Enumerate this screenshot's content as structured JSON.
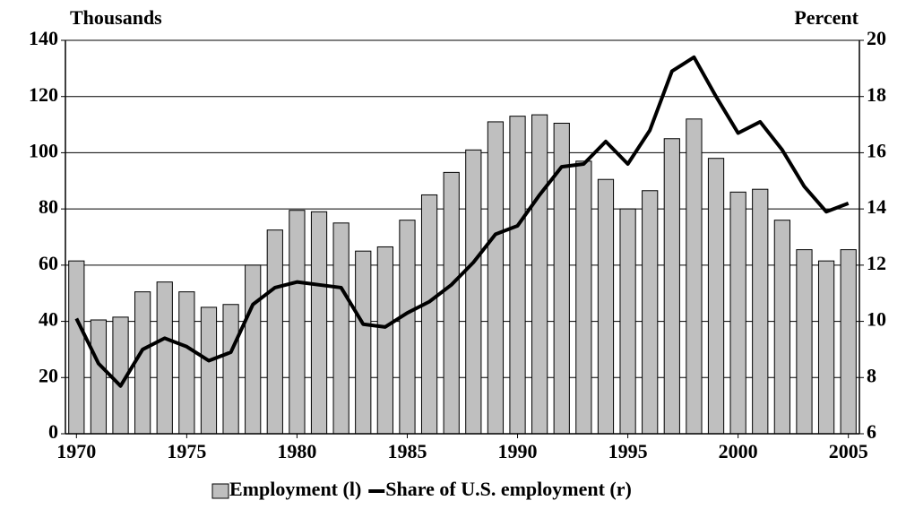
{
  "chart_data": {
    "type": "bar",
    "ylabel": "Thousands",
    "y2label": "Percent",
    "x": [
      1970,
      1971,
      1972,
      1973,
      1974,
      1975,
      1976,
      1977,
      1978,
      1979,
      1980,
      1981,
      1982,
      1983,
      1984,
      1985,
      1986,
      1987,
      1988,
      1989,
      1990,
      1991,
      1992,
      1993,
      1994,
      1995,
      1996,
      1997,
      1998,
      1999,
      2000,
      2001,
      2002,
      2003,
      2004,
      2005
    ],
    "xlim": [
      1969.5,
      2005.5
    ],
    "xticks": [
      1970,
      1975,
      1980,
      1985,
      1990,
      1995,
      2000,
      2005
    ],
    "ylim": [
      0,
      140
    ],
    "yticks": [
      0,
      20,
      40,
      60,
      80,
      100,
      120,
      140
    ],
    "y2lim": [
      6,
      20
    ],
    "y2ticks": [
      6,
      8,
      10,
      12,
      14,
      16,
      18,
      20
    ],
    "grid": true,
    "legend": "bottom",
    "series": [
      {
        "name": "Employment (l)",
        "type": "bar",
        "color": "#bfbfbf",
        "values": [
          61.5,
          40.5,
          41.5,
          50.5,
          54,
          50.5,
          45,
          46,
          60,
          72.5,
          79.5,
          79,
          75,
          65,
          66.5,
          76,
          85,
          93,
          101,
          111,
          113,
          113.5,
          110.5,
          97,
          90.5,
          80,
          86.5,
          105,
          112,
          98,
          86,
          87,
          76,
          65.5,
          61.5,
          65.5
        ]
      },
      {
        "name": "Share of U.S. employment (r)",
        "type": "line",
        "color": "#000000",
        "axis": "y2",
        "values": [
          10.1,
          8.5,
          7.7,
          9.0,
          9.4,
          9.1,
          8.6,
          8.9,
          10.6,
          11.2,
          11.4,
          11.3,
          11.2,
          9.9,
          9.8,
          10.3,
          10.7,
          11.3,
          12.1,
          13.1,
          13.4,
          14.5,
          15.5,
          15.6,
          16.4,
          15.6,
          16.8,
          18.9,
          19.4,
          18.0,
          16.7,
          17.1,
          16.1,
          14.8,
          13.9,
          14.2
        ]
      }
    ]
  }
}
